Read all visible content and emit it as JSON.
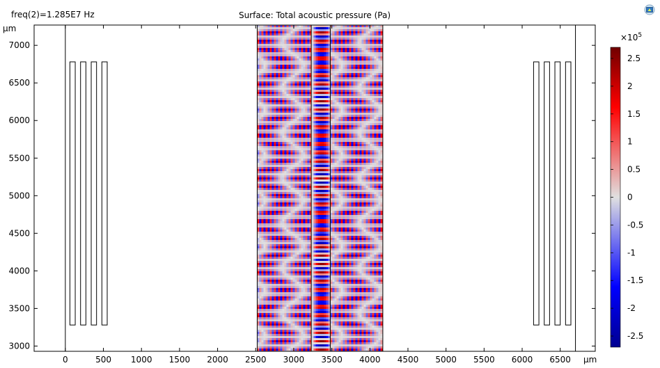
{
  "header": {
    "freq_label": "freq(2)=1.285E7 Hz",
    "title": "Surface: Total acoustic pressure (Pa)"
  },
  "toolbar": {
    "icon": "plot-window-icon"
  },
  "chart_data": {
    "type": "heatmap",
    "title": "Surface: Total acoustic pressure (Pa)",
    "annotation": "freq(2)=1.285E7 Hz",
    "xlabel": "µm",
    "ylabel": "µm",
    "xlim": [
      -410,
      6960
    ],
    "ylim": [
      2930,
      7270
    ],
    "xticks": [
      0,
      500,
      1000,
      1500,
      2000,
      2500,
      3000,
      3500,
      4000,
      4500,
      5000,
      5500,
      6000,
      6500
    ],
    "yticks": [
      3000,
      3500,
      4000,
      4500,
      5000,
      5500,
      6000,
      6500,
      7000
    ],
    "domain_lines_x": [
      0,
      6700
    ],
    "channel": {
      "x": [
        2520,
        4170
      ],
      "y": [
        2930,
        7270
      ],
      "inner_walls_x": [
        3230,
        3480
      ]
    },
    "electrodes_left": [
      {
        "x": [
          60,
          130
        ],
        "y": [
          3280,
          6780
        ]
      },
      {
        "x": [
          200,
          270
        ],
        "y": [
          3280,
          6780
        ]
      },
      {
        "x": [
          340,
          410
        ],
        "y": [
          3280,
          6780
        ]
      },
      {
        "x": [
          480,
          550
        ],
        "y": [
          3280,
          6780
        ]
      }
    ],
    "electrodes_right": [
      {
        "x": [
          6150,
          6220
        ],
        "y": [
          3280,
          6780
        ]
      },
      {
        "x": [
          6290,
          6360
        ],
        "y": [
          3280,
          6780
        ]
      },
      {
        "x": [
          6430,
          6500
        ],
        "y": [
          3280,
          6780
        ]
      },
      {
        "x": [
          6570,
          6640
        ],
        "y": [
          3280,
          6780
        ]
      }
    ],
    "wave": {
      "stripe_wavelength_x": 58,
      "band_wavelength_y": 114,
      "center_x": 3355,
      "amplitude": 250000
    },
    "colorbar": {
      "range": [
        -270000,
        270000
      ],
      "multiplier_label": "×10",
      "multiplier_exp": "5",
      "ticks": [
        2.5,
        2,
        1.5,
        1,
        0.5,
        0,
        -0.5,
        -1,
        -1.5,
        -2,
        -2.5
      ],
      "tick_labels": [
        "2.5",
        "2",
        "1.5",
        "1",
        "0.5",
        "0",
        "-0.5",
        "-1",
        "-1.5",
        "-2",
        "-2.5"
      ],
      "colors": [
        "#000090",
        "#0000ff",
        "#e0e0e0",
        "#ff0000",
        "#700000"
      ]
    }
  }
}
